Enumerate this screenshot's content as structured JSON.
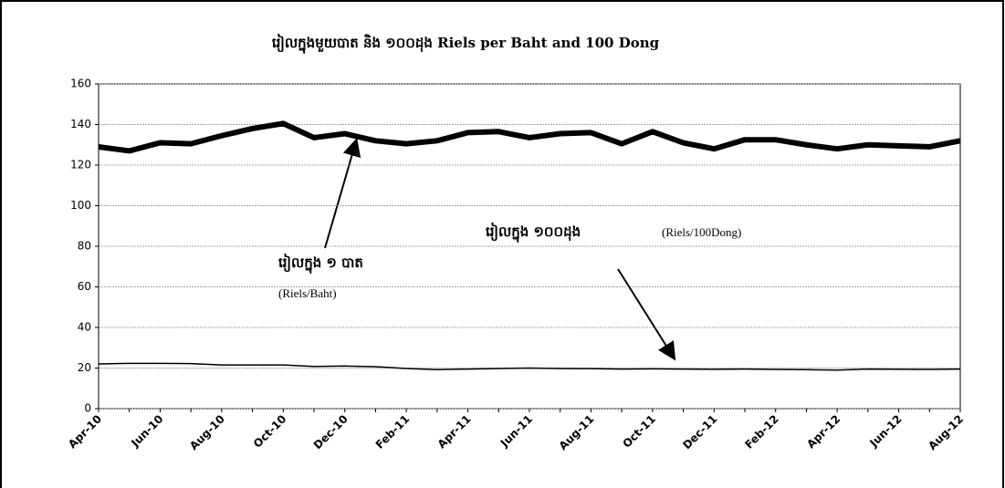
{
  "chart_data": {
    "type": "line",
    "title": "រៀលក្នុងមួយបាត និង ១០០ដុង Riels per Baht and 100 Dong",
    "categories": [
      "Apr-10",
      null,
      "Jun-10",
      null,
      "Aug-10",
      null,
      "Oct-10",
      null,
      "Dec-10",
      null,
      "Feb-11",
      null,
      "Apr-11",
      null,
      "Jun-11",
      null,
      "Aug-11",
      null,
      "Oct-11",
      null,
      "Dec-11",
      null,
      "Feb-12",
      null,
      "Apr-12",
      null,
      "Jun-12",
      null,
      "Aug-12"
    ],
    "series": [
      {
        "color": "#000000",
        "values": [
          129,
          127,
          131,
          130.5,
          134.5,
          138,
          140.5,
          133.5,
          135.5,
          132,
          130.5,
          132,
          136,
          136.5,
          133.5,
          135.5,
          136,
          130.5,
          136.5,
          131,
          128,
          132.5,
          132.5,
          130,
          128,
          130,
          129.5,
          129,
          132
        ]
      },
      {
        "color": "#000000",
        "values": [
          22,
          22.3,
          22.3,
          22.2,
          21.5,
          21.5,
          21.5,
          20.8,
          21,
          20.7,
          19.8,
          19.2,
          19.5,
          19.8,
          20,
          19.8,
          19.7,
          19.5,
          19.6,
          19.5,
          19.4,
          19.5,
          19.3,
          19.2,
          19,
          19.5,
          19.4,
          19.3,
          19.5
        ]
      }
    ],
    "annotations": [
      "រៀលក្នុង ១ បាត",
      "(Riels/Baht)",
      "រៀលក្នុង ១០០ដុង",
      "(Riels/100Dong)"
    ],
    "ylim": [
      0,
      160
    ],
    "yticks": [
      0,
      20,
      40,
      60,
      80,
      100,
      120,
      140,
      160
    ],
    "grid": true
  }
}
